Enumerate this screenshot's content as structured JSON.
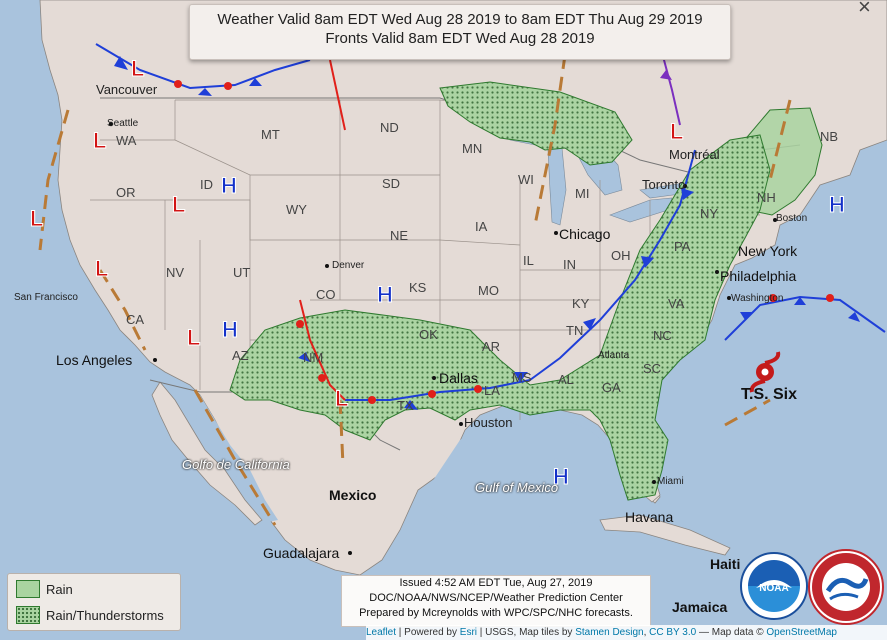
{
  "title": {
    "line1": "Weather Valid 8am EDT Wed Aug 28 2019 to 8am EDT Thu Aug 29 2019",
    "line2": "Fronts Valid 8am EDT Wed Aug 28 2019",
    "close": "×"
  },
  "legend": {
    "rain": "Rain",
    "rain_ts": "Rain/Thunderstorms"
  },
  "issued": {
    "line1": "Issued 4:52 AM EDT Tue, Aug 27, 2019",
    "line2": "DOC/NOAA/NWS/NCEP/Weather Prediction Center",
    "line3": "Prepared by Mcreynolds with WPC/SPC/NHC forecasts."
  },
  "attribution": {
    "leaflet": "Leaflet",
    "sep1": " | Powered by ",
    "esri": "Esri",
    "sep2": " | USGS, Map tiles by ",
    "stamen": "Stamen Design",
    "sep3": ", ",
    "ccby": "CC BY 3.0",
    "sep4": " — Map data © ",
    "osm": "OpenStreetMap"
  },
  "logos": {
    "noaa": "NOAA",
    "nws": "NATIONAL WEATHER SERVICE"
  },
  "states": {
    "mt": "MT",
    "nd": "ND",
    "mn": "MN",
    "wa": "WA",
    "id": "ID",
    "or": "OR",
    "sd": "SD",
    "wy": "WY",
    "wi": "WI",
    "mi": "MI",
    "ia": "IA",
    "ne": "NE",
    "nv": "NV",
    "ut": "UT",
    "co": "CO",
    "ks": "KS",
    "mo": "MO",
    "il": "IL",
    "in": "IN",
    "oh": "OH",
    "ky": "KY",
    "ca": "CA",
    "az": "AZ",
    "nm": "NM",
    "ok": "OK",
    "ar": "AR",
    "tn": "TN",
    "ms": "MS",
    "al": "AL",
    "ga": "GA",
    "sc": "SC",
    "nc": "NC",
    "va": "VA",
    "pa": "PA",
    "ny": "NY",
    "nh": "NH",
    "nb": "NB",
    "tx": "TX",
    "la": "LA"
  },
  "cities": {
    "vancouver": "Vancouver",
    "seattle": "Seattle",
    "montreal": "Montréal",
    "toronto": "Toronto",
    "boston": "Boston",
    "new_york": "New York",
    "philadelphia": "Philadelphia",
    "washington": "Washington",
    "chicago": "Chicago",
    "denver": "Denver",
    "dallas": "Dallas",
    "houston": "Houston",
    "atlanta": "Atlanta",
    "miami": "Miami",
    "havana": "Havana",
    "san_francisco": "San Francisco",
    "los_angeles": "Los Angeles",
    "mexico": "Mexico",
    "guadalajara": "Guadalajara",
    "jamaica": "Jamaica",
    "haiti": "Haiti"
  },
  "water": {
    "gulf_california": "Golfo de California",
    "gulf_mexico": "Gulf of Mexico"
  },
  "storm": {
    "name": "T.S. Six"
  },
  "systems": {
    "low": "L",
    "high": "H"
  },
  "colors": {
    "low": "#d21414",
    "high": "#1431c9",
    "rain": "#a9d4a0",
    "thunder": "#3a6f3a",
    "land": "#e4dbd6",
    "water": "#a9c3dd",
    "trough": "#b97a36",
    "warm": "#e1201a",
    "cold": "#1f3fd8"
  }
}
